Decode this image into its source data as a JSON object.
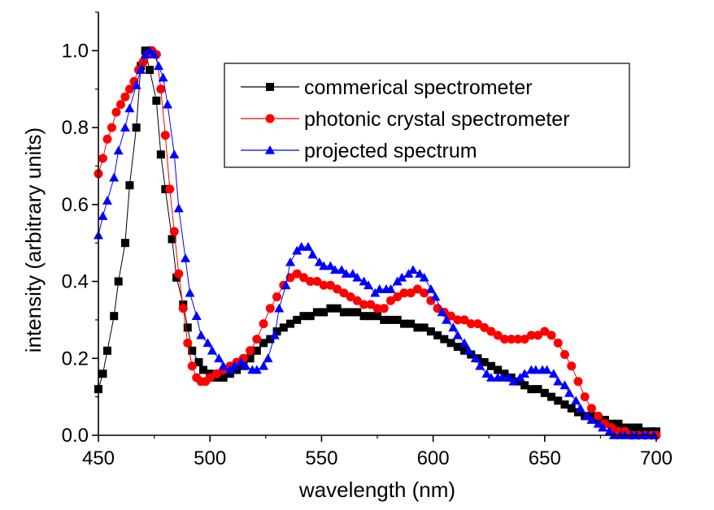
{
  "chart_data": {
    "type": "line",
    "xlabel": "wavelength (nm)",
    "ylabel": "intensity (arbitrary units)",
    "xlim": [
      450,
      700
    ],
    "ylim": [
      0.0,
      1.1
    ],
    "x_ticks": [
      450,
      500,
      550,
      600,
      650,
      700
    ],
    "x_tick_labels": [
      "450",
      "500",
      "550",
      "600",
      "650",
      "700"
    ],
    "y_ticks": [
      0.0,
      0.2,
      0.4,
      0.6,
      0.8,
      1.0
    ],
    "y_tick_labels": [
      "0.0",
      "0.2",
      "0.4",
      "0.6",
      "0.8",
      "1.0"
    ],
    "grid": false,
    "legend_position": "top-right",
    "series": [
      {
        "name": "commerical spectrometer",
        "color": "#000000",
        "marker": "square",
        "x": [
          450,
          452,
          454,
          457,
          459,
          462,
          464,
          467,
          469,
          471,
          473,
          476,
          478,
          480,
          483,
          485,
          488,
          490,
          492,
          495,
          497,
          500,
          503,
          506,
          509,
          512,
          515,
          518,
          521,
          524,
          527,
          530,
          533,
          536,
          539,
          542,
          545,
          548,
          551,
          554,
          557,
          560,
          563,
          566,
          569,
          572,
          575,
          578,
          581,
          584,
          587,
          590,
          593,
          596,
          599,
          602,
          605,
          608,
          611,
          614,
          617,
          620,
          623,
          626,
          629,
          632,
          635,
          638,
          641,
          644,
          647,
          650,
          653,
          656,
          659,
          662,
          665,
          668,
          671,
          674,
          677,
          680,
          683,
          686,
          689,
          692,
          695,
          698,
          700
        ],
        "y": [
          0.12,
          0.16,
          0.22,
          0.31,
          0.4,
          0.5,
          0.65,
          0.8,
          0.96,
          1.0,
          0.95,
          0.87,
          0.73,
          0.64,
          0.51,
          0.41,
          0.34,
          0.28,
          0.22,
          0.19,
          0.17,
          0.16,
          0.15,
          0.15,
          0.16,
          0.17,
          0.18,
          0.2,
          0.22,
          0.24,
          0.25,
          0.27,
          0.28,
          0.29,
          0.3,
          0.31,
          0.31,
          0.32,
          0.32,
          0.33,
          0.33,
          0.32,
          0.32,
          0.32,
          0.31,
          0.31,
          0.31,
          0.3,
          0.3,
          0.3,
          0.29,
          0.29,
          0.28,
          0.28,
          0.27,
          0.26,
          0.25,
          0.24,
          0.23,
          0.22,
          0.21,
          0.2,
          0.19,
          0.18,
          0.17,
          0.16,
          0.15,
          0.14,
          0.13,
          0.12,
          0.12,
          0.11,
          0.1,
          0.09,
          0.08,
          0.07,
          0.06,
          0.05,
          0.05,
          0.04,
          0.04,
          0.03,
          0.03,
          0.02,
          0.02,
          0.02,
          0.01,
          0.01,
          0.01
        ]
      },
      {
        "name": "photonic crystal spectrometer",
        "color": "#ff0000",
        "marker": "circle",
        "x": [
          450,
          452,
          454,
          456,
          458,
          460,
          462,
          464,
          466,
          468,
          470,
          472,
          474,
          476,
          478,
          480,
          482,
          484,
          486,
          488,
          490,
          492,
          494,
          496,
          498,
          500,
          503,
          506,
          509,
          512,
          515,
          518,
          521,
          524,
          527,
          530,
          533,
          536,
          539,
          542,
          545,
          548,
          551,
          554,
          557,
          560,
          563,
          566,
          569,
          572,
          575,
          578,
          581,
          584,
          587,
          590,
          593,
          596,
          599,
          602,
          605,
          608,
          611,
          614,
          617,
          620,
          623,
          626,
          629,
          632,
          635,
          638,
          641,
          644,
          647,
          650,
          653,
          656,
          659,
          662,
          665,
          668,
          671,
          674,
          677,
          680,
          683,
          686,
          689,
          692,
          695,
          698,
          700
        ],
        "y": [
          0.68,
          0.72,
          0.77,
          0.8,
          0.84,
          0.86,
          0.88,
          0.9,
          0.92,
          0.95,
          0.97,
          0.99,
          1.0,
          0.99,
          0.9,
          0.78,
          0.64,
          0.53,
          0.42,
          0.33,
          0.24,
          0.18,
          0.15,
          0.14,
          0.14,
          0.15,
          0.16,
          0.17,
          0.18,
          0.19,
          0.2,
          0.22,
          0.25,
          0.29,
          0.33,
          0.36,
          0.39,
          0.41,
          0.42,
          0.41,
          0.4,
          0.4,
          0.39,
          0.39,
          0.38,
          0.37,
          0.36,
          0.35,
          0.34,
          0.34,
          0.33,
          0.33,
          0.35,
          0.36,
          0.37,
          0.37,
          0.38,
          0.37,
          0.35,
          0.33,
          0.32,
          0.31,
          0.3,
          0.3,
          0.29,
          0.29,
          0.28,
          0.27,
          0.26,
          0.25,
          0.25,
          0.25,
          0.25,
          0.26,
          0.26,
          0.27,
          0.26,
          0.24,
          0.21,
          0.18,
          0.14,
          0.1,
          0.07,
          0.05,
          0.03,
          0.02,
          0.01,
          0.01,
          0.0,
          0.0,
          0.0,
          0.0,
          0.0
        ]
      },
      {
        "name": "projected spectrum",
        "color": "#0000ff",
        "marker": "triangle",
        "x": [
          450,
          452,
          454,
          457,
          459,
          462,
          464,
          467,
          469,
          471,
          473,
          475,
          477,
          479,
          481,
          484,
          486,
          489,
          491,
          494,
          496,
          499,
          501,
          504,
          506,
          509,
          511,
          514,
          516,
          519,
          521,
          524,
          526,
          529,
          531,
          534,
          536,
          539,
          541,
          544,
          546,
          549,
          551,
          554,
          556,
          559,
          561,
          564,
          566,
          569,
          571,
          574,
          576,
          579,
          581,
          584,
          586,
          589,
          591,
          594,
          596,
          599,
          601,
          604,
          606,
          609,
          611,
          614,
          616,
          619,
          621,
          624,
          626,
          629,
          631,
          634,
          636,
          639,
          641,
          644,
          646,
          649,
          651,
          654,
          656,
          659,
          661,
          664,
          666,
          669,
          671,
          674,
          676,
          679,
          681,
          684,
          686,
          689,
          691,
          694,
          696,
          699
        ],
        "y": [
          0.52,
          0.57,
          0.61,
          0.67,
          0.74,
          0.8,
          0.85,
          0.91,
          0.95,
          0.99,
          1.0,
          0.99,
          0.96,
          0.93,
          0.86,
          0.73,
          0.59,
          0.46,
          0.37,
          0.31,
          0.26,
          0.24,
          0.22,
          0.2,
          0.18,
          0.17,
          0.18,
          0.19,
          0.18,
          0.17,
          0.17,
          0.18,
          0.2,
          0.26,
          0.33,
          0.39,
          0.45,
          0.48,
          0.49,
          0.49,
          0.47,
          0.45,
          0.44,
          0.44,
          0.43,
          0.43,
          0.42,
          0.42,
          0.41,
          0.4,
          0.39,
          0.37,
          0.38,
          0.38,
          0.38,
          0.4,
          0.41,
          0.42,
          0.43,
          0.42,
          0.41,
          0.38,
          0.36,
          0.32,
          0.3,
          0.28,
          0.26,
          0.24,
          0.22,
          0.2,
          0.18,
          0.16,
          0.15,
          0.15,
          0.15,
          0.15,
          0.14,
          0.15,
          0.16,
          0.17,
          0.17,
          0.17,
          0.17,
          0.16,
          0.14,
          0.13,
          0.11,
          0.09,
          0.07,
          0.05,
          0.04,
          0.03,
          0.02,
          0.01,
          0.0,
          0.0,
          0.0,
          0.0,
          0.0,
          0.0,
          0.0,
          0.0
        ]
      }
    ]
  }
}
